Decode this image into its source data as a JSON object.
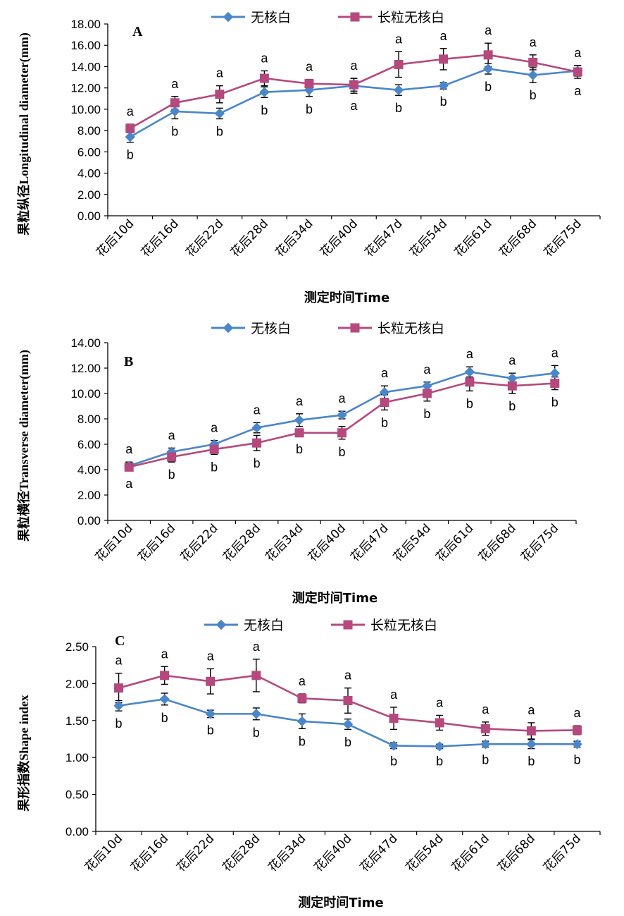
{
  "colors": {
    "series1": "#4a86c8",
    "series2": "#b5497e",
    "axis": "#000000"
  },
  "chart_data": [
    {
      "type": "line",
      "panel_label": "A",
      "categories": [
        "花后10d",
        "花后16d",
        "花后22d",
        "花后28d",
        "花后34d",
        "花后40d",
        "花后47d",
        "花后54d",
        "花后61d",
        "花后68d",
        "花后75d"
      ],
      "xlabel": "测定时间Time",
      "ylabel": "果粒纵径Longitudinal diameter(mm)",
      "ylim": [
        0,
        18
      ],
      "yticks": [
        "0.00",
        "2.00",
        "4.00",
        "6.00",
        "8.00",
        "10.00",
        "12.00",
        "14.00",
        "16.00",
        "18.00"
      ],
      "legend_position": "top-center",
      "grid": false,
      "series": [
        {
          "name": "无核白",
          "color": "#4a86c8",
          "marker": "diamond",
          "values": [
            7.4,
            9.8,
            9.6,
            11.6,
            11.8,
            12.2,
            11.8,
            12.2,
            13.8,
            13.2,
            13.6
          ],
          "errors": [
            0.5,
            0.7,
            0.5,
            0.5,
            0.6,
            0.7,
            0.5,
            0.3,
            0.5,
            0.7,
            0.5
          ],
          "letters": [
            "b",
            "b",
            "b",
            "b",
            "b",
            "a",
            "b",
            "b",
            "b",
            "b",
            "a"
          ]
        },
        {
          "name": "长粒无核白",
          "color": "#b5497e",
          "marker": "square",
          "values": [
            8.2,
            10.6,
            11.4,
            12.9,
            12.4,
            12.3,
            14.2,
            14.7,
            15.1,
            14.4,
            13.5
          ],
          "errors": [
            0.4,
            0.6,
            0.8,
            0.7,
            0.4,
            0.6,
            1.2,
            1.0,
            1.1,
            0.7,
            0.6
          ],
          "letters": [
            "a",
            "a",
            "a",
            "a",
            "a",
            "a",
            "a",
            "a",
            "a",
            "a",
            "a"
          ]
        }
      ]
    },
    {
      "type": "line",
      "panel_label": "B",
      "categories": [
        "花后10d",
        "花后16d",
        "花后22d",
        "花后28d",
        "花后34d",
        "花后40d",
        "花后47d",
        "花后54d",
        "花后61d",
        "花后68d",
        "花后75d"
      ],
      "xlabel": "测定时间Time",
      "ylabel": "果粒横径Transverse diameter(mm)",
      "ylim": [
        0,
        14
      ],
      "yticks": [
        "0.00",
        "2.00",
        "4.00",
        "6.00",
        "8.00",
        "10.00",
        "12.00",
        "14.00"
      ],
      "legend_position": "top-center",
      "grid": false,
      "series": [
        {
          "name": "无核白",
          "color": "#4a86c8",
          "marker": "diamond",
          "values": [
            4.3,
            5.4,
            6.0,
            7.3,
            7.9,
            8.3,
            10.1,
            10.6,
            11.7,
            11.2,
            11.6
          ],
          "errors": [
            0.3,
            0.3,
            0.3,
            0.4,
            0.5,
            0.3,
            0.5,
            0.3,
            0.4,
            0.4,
            0.6
          ],
          "letters": [
            "a",
            "a",
            "a",
            "a",
            "a",
            "a",
            "a",
            "a",
            "a",
            "a",
            "a"
          ]
        },
        {
          "name": "长粒无核白",
          "color": "#b5497e",
          "marker": "square",
          "values": [
            4.2,
            5.0,
            5.6,
            6.1,
            6.9,
            6.9,
            9.3,
            10.0,
            10.9,
            10.6,
            10.8
          ],
          "errors": [
            0.3,
            0.4,
            0.4,
            0.6,
            0.3,
            0.5,
            0.6,
            0.6,
            0.7,
            0.6,
            0.5
          ],
          "letters": [
            "a",
            "b",
            "b",
            "b",
            "b",
            "b",
            "b",
            "b",
            "b",
            "b",
            "b"
          ]
        }
      ]
    },
    {
      "type": "line",
      "panel_label": "C",
      "categories": [
        "花后10d",
        "花后16d",
        "花后22d",
        "花后28d",
        "花后34d",
        "花后40d",
        "花后47d",
        "花后54d",
        "花后61d",
        "花后68d",
        "花后75d"
      ],
      "xlabel": "测定时间Time",
      "ylabel": "果形指数Shape index",
      "ylim": [
        0,
        2.5
      ],
      "yticks": [
        "0.00",
        "0.50",
        "1.00",
        "1.50",
        "2.00",
        "2.50"
      ],
      "legend_position": "top-center",
      "grid": false,
      "series": [
        {
          "name": "无核白",
          "color": "#4a86c8",
          "marker": "diamond",
          "values": [
            1.7,
            1.79,
            1.59,
            1.59,
            1.49,
            1.45,
            1.16,
            1.15,
            1.18,
            1.18,
            1.18
          ],
          "errors": [
            0.07,
            0.08,
            0.05,
            0.08,
            0.1,
            0.07,
            0.04,
            0.03,
            0.04,
            0.06,
            0.04
          ],
          "letters": [
            "b",
            "b",
            "b",
            "b",
            "b",
            "b",
            "b",
            "b",
            "b",
            "b",
            "b"
          ]
        },
        {
          "name": "长粒无核白",
          "color": "#b5497e",
          "marker": "square",
          "values": [
            1.94,
            2.11,
            2.03,
            2.11,
            1.8,
            1.77,
            1.53,
            1.47,
            1.39,
            1.36,
            1.37
          ],
          "errors": [
            0.2,
            0.12,
            0.17,
            0.22,
            0.06,
            0.17,
            0.15,
            0.1,
            0.09,
            0.11,
            0.06
          ],
          "letters": [
            "a",
            "a",
            "a",
            "a",
            "a",
            "a",
            "a",
            "a",
            "a",
            "a",
            "a"
          ]
        }
      ]
    }
  ]
}
